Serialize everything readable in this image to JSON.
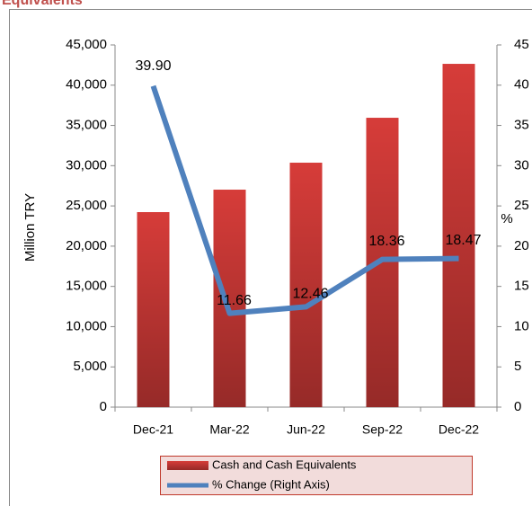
{
  "chart_data": {
    "type": "bar_line",
    "title": "Equivalents",
    "y_label": "Million TRY",
    "y2_label": "%",
    "categories": [
      "Dec-21",
      "Mar-22",
      "Jun-22",
      "Sep-22",
      "Dec-22"
    ],
    "series": [
      {
        "name": "Cash and Cash Equivalents",
        "color": "#d63c39",
        "values": [
          24230,
          27020,
          30370,
          35950,
          42650
        ]
      },
      {
        "name": "% Change (Right Axis)",
        "color": "#4f81bd",
        "axis": "y2",
        "values": [
          39.9,
          11.66,
          12.46,
          18.36,
          18.47
        ],
        "value_labels": [
          "39.90",
          "11.66",
          "12.46",
          "18.36",
          "18.47"
        ]
      }
    ],
    "ylim": [
      0,
      45000
    ],
    "yticks": [
      0,
      {
        "value": 5000,
        "label": "5,000"
      },
      {
        "value": 10000,
        "label": "10,000"
      },
      {
        "value": 15000,
        "label": "15,000"
      },
      {
        "value": 20000,
        "label": "20,000"
      },
      {
        "value": 25000,
        "label": "25,000"
      },
      {
        "value": 30000,
        "label": "30,000"
      },
      {
        "value": 35000,
        "label": "35,000"
      },
      {
        "value": 40000,
        "label": "40,000"
      },
      {
        "value": 45000,
        "label": "45,000"
      }
    ],
    "y2lim": [
      0,
      45
    ],
    "y2ticks": [
      0,
      5,
      10,
      15,
      20,
      25,
      30,
      35,
      40,
      45
    ],
    "legend": "bottom"
  }
}
